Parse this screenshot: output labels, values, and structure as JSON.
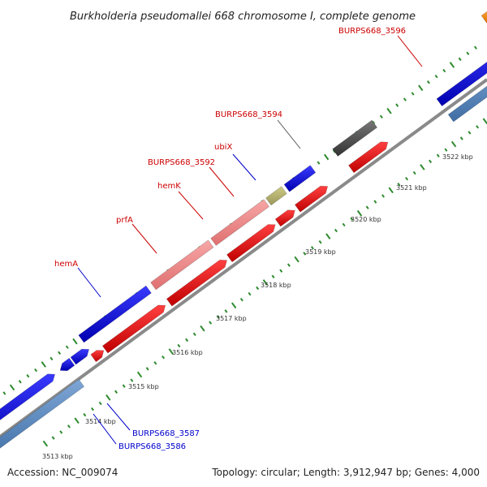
{
  "title": "Burkholderia pseudomallei 668 chromosome I, complete genome",
  "footer": {
    "accession": "Accession: NC_009074",
    "summary": "Topology: circular; Length: 3,912,947 bp; Genes: 4,000"
  },
  "scale": {
    "ticks": [
      "3513 kbp",
      "3514 kbp",
      "3515 kbp",
      "3516 kbp",
      "3517 kbp",
      "3518 kbp",
      "3519 kbp",
      "3520 kbp",
      "3521 kbp",
      "3522 kbp"
    ]
  },
  "labels": {
    "hemA": "hemA",
    "prfA": "prfA",
    "hemK": "hemK",
    "burps3592": "BURPS668_3592",
    "ubiX": "ubiX",
    "burps3594": "BURPS668_3594",
    "burps3596": "BURPS668_3596",
    "burps3587": "BURPS668_3587",
    "burps3586": "BURPS668_3586"
  },
  "colors": {
    "backbone": "#808080",
    "dots": "#2e8b2e",
    "cds_blue": "#0000dd",
    "cds_red": "#ee0000",
    "cds_pink": "#f08a8a",
    "cds_steel": "#4f7fb6",
    "cds_gray": "#555555",
    "cds_olive": "#b5b26a",
    "cds_orange": "#ff8c00",
    "label_red": "#cc0000",
    "label_blue": "#0000cc"
  }
}
